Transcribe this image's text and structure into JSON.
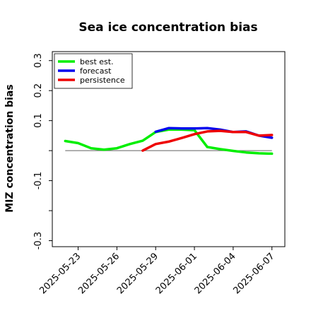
{
  "chart_data": {
    "type": "line",
    "title": "Sea ice concentration bias",
    "xlabel": "",
    "ylabel": "MIZ concentration bias",
    "ylim": [
      -0.32,
      0.33
    ],
    "xlim": [
      "2025-05-21",
      "2025-06-08"
    ],
    "y_ticks": [
      -0.3,
      -0.2,
      -0.1,
      0.0,
      0.1,
      0.2,
      0.3
    ],
    "y_tick_labels": [
      "-0.3",
      "",
      "-0.1",
      "",
      "0.1",
      "0.2",
      "0.3"
    ],
    "x_ticks": [
      "2025-05-23",
      "2025-05-26",
      "2025-05-29",
      "2025-06-01",
      "2025-06-04",
      "2025-06-07"
    ],
    "x_tick_colors": [
      "#000000",
      "#000000",
      "#008000",
      "#000000",
      "#000000",
      "#000000"
    ],
    "reference_line": {
      "y": 0.0,
      "x_start": "2025-05-22",
      "x_end": "2025-06-07",
      "color": "#808080"
    },
    "grid": false,
    "legend": "top-left",
    "series": [
      {
        "name": "best est.",
        "color": "#00ee00",
        "x": [
          "2025-05-22",
          "2025-05-23",
          "2025-05-24",
          "2025-05-25",
          "2025-05-26",
          "2025-05-27",
          "2025-05-28",
          "2025-05-29",
          "2025-05-30",
          "2025-05-31",
          "2025-06-01",
          "2025-06-02",
          "2025-06-03",
          "2025-06-04",
          "2025-06-05",
          "2025-06-06",
          "2025-06-07"
        ],
        "y": [
          0.032,
          0.025,
          0.008,
          0.003,
          0.008,
          0.022,
          0.033,
          0.062,
          0.07,
          0.07,
          0.068,
          0.012,
          0.005,
          -0.001,
          -0.006,
          -0.009,
          -0.01
        ]
      },
      {
        "name": "forecast",
        "color": "#0000ee",
        "x": [
          "2025-05-29",
          "2025-05-30",
          "2025-05-31",
          "2025-06-01",
          "2025-06-02",
          "2025-06-03",
          "2025-06-04",
          "2025-06-05",
          "2025-06-06",
          "2025-06-07"
        ],
        "y": [
          0.063,
          0.075,
          0.074,
          0.074,
          0.075,
          0.07,
          0.062,
          0.064,
          0.05,
          0.043
        ]
      },
      {
        "name": "persistence",
        "color": "#ee0000",
        "x": [
          "2025-05-28",
          "2025-05-29",
          "2025-05-30",
          "2025-05-31",
          "2025-06-01",
          "2025-06-02",
          "2025-06-03",
          "2025-06-04",
          "2025-06-05",
          "2025-06-06",
          "2025-06-07"
        ],
        "y": [
          0.0,
          0.022,
          0.03,
          0.042,
          0.055,
          0.064,
          0.066,
          0.062,
          0.062,
          0.05,
          0.052
        ]
      }
    ]
  }
}
